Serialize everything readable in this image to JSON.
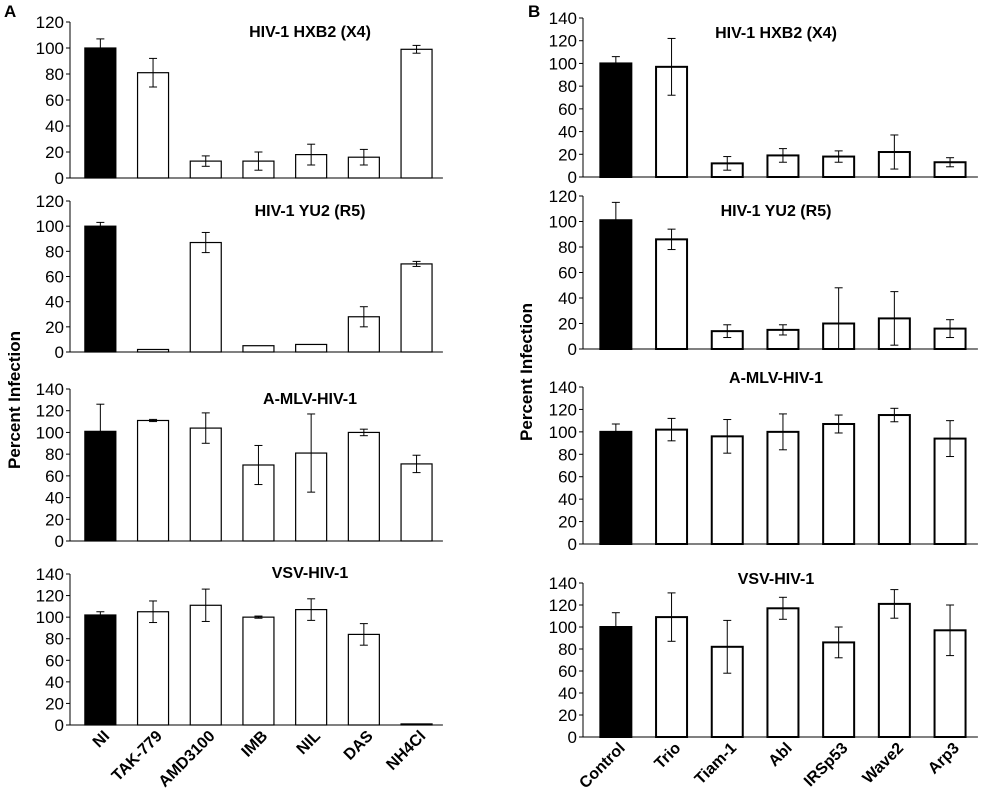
{
  "figure": {
    "panel_labels": [
      "A",
      "B"
    ],
    "ylabel": "Percent Infection"
  },
  "chart_data": [
    {
      "type": "bar",
      "panel": "A",
      "title": "HIV-1 HXB2 (X4)",
      "categories": [
        "NI",
        "TAK-779",
        "AMD3100",
        "IMB",
        "NIL",
        "DAS",
        "NH4Cl"
      ],
      "values": [
        100,
        81,
        13,
        13,
        18,
        16,
        99
      ],
      "errors": [
        7,
        11,
        4,
        7,
        8,
        6,
        3
      ],
      "bar_colors": [
        "#000000",
        "#ffffff",
        "#ffffff",
        "#ffffff",
        "#ffffff",
        "#ffffff",
        "#ffffff"
      ],
      "ylim": [
        0,
        120
      ],
      "yticks": [
        0,
        20,
        40,
        60,
        80,
        100,
        120
      ]
    },
    {
      "type": "bar",
      "panel": "A",
      "title": "HIV-1 YU2 (R5)",
      "categories": [
        "NI",
        "TAK-779",
        "AMD3100",
        "IMB",
        "NIL",
        "DAS",
        "NH4Cl"
      ],
      "values": [
        100,
        2,
        87,
        5,
        6,
        28,
        70
      ],
      "errors": [
        3,
        0,
        8,
        0,
        0,
        8,
        2
      ],
      "bar_colors": [
        "#000000",
        "#ffffff",
        "#ffffff",
        "#ffffff",
        "#ffffff",
        "#ffffff",
        "#ffffff"
      ],
      "ylim": [
        0,
        120
      ],
      "yticks": [
        0,
        20,
        40,
        60,
        80,
        100,
        120
      ]
    },
    {
      "type": "bar",
      "panel": "A",
      "title": "A-MLV-HIV-1",
      "categories": [
        "NI",
        "TAK-779",
        "AMD3100",
        "IMB",
        "NIL",
        "DAS",
        "NH4Cl"
      ],
      "values": [
        101,
        111,
        104,
        70,
        81,
        100,
        71
      ],
      "errors": [
        25,
        1,
        14,
        18,
        36,
        3,
        8
      ],
      "bar_colors": [
        "#000000",
        "#ffffff",
        "#ffffff",
        "#ffffff",
        "#ffffff",
        "#ffffff",
        "#ffffff"
      ],
      "ylim": [
        0,
        140
      ],
      "yticks": [
        0,
        20,
        40,
        60,
        80,
        100,
        120,
        140
      ]
    },
    {
      "type": "bar",
      "panel": "A",
      "title": "VSV-HIV-1",
      "categories": [
        "NI",
        "TAK-779",
        "AMD3100",
        "IMB",
        "NIL",
        "DAS",
        "NH4Cl"
      ],
      "values": [
        102,
        105,
        111,
        100,
        107,
        84,
        1
      ],
      "errors": [
        3,
        10,
        15,
        1,
        10,
        10,
        0
      ],
      "bar_colors": [
        "#000000",
        "#ffffff",
        "#ffffff",
        "#ffffff",
        "#ffffff",
        "#ffffff",
        "#ffffff"
      ],
      "ylim": [
        0,
        140
      ],
      "yticks": [
        0,
        20,
        40,
        60,
        80,
        100,
        120,
        140
      ]
    },
    {
      "type": "bar",
      "panel": "B",
      "title": "HIV-1 HXB2 (X4)",
      "categories": [
        "Control",
        "Trio",
        "Tiam-1",
        "Abl",
        "IRSp53",
        "Wave2",
        "Arp3"
      ],
      "values": [
        100,
        97,
        12,
        19,
        18,
        22,
        13
      ],
      "errors": [
        6,
        25,
        6,
        6,
        5,
        15,
        4
      ],
      "bar_colors": [
        "#000000",
        "#ffffff",
        "#ffffff",
        "#ffffff",
        "#ffffff",
        "#ffffff",
        "#ffffff"
      ],
      "ylim": [
        0,
        140
      ],
      "yticks": [
        0,
        20,
        40,
        60,
        80,
        100,
        120,
        140
      ]
    },
    {
      "type": "bar",
      "panel": "B",
      "title": "HIV-1 YU2 (R5)",
      "categories": [
        "Control",
        "Trio",
        "Tiam-1",
        "Abl",
        "IRSp53",
        "Wave2",
        "Arp3"
      ],
      "values": [
        101,
        86,
        14,
        15,
        20,
        24,
        16
      ],
      "errors": [
        14,
        8,
        5,
        4,
        28,
        21,
        7
      ],
      "bar_colors": [
        "#000000",
        "#ffffff",
        "#ffffff",
        "#ffffff",
        "#ffffff",
        "#ffffff",
        "#ffffff"
      ],
      "ylim": [
        0,
        120
      ],
      "yticks": [
        0,
        20,
        40,
        60,
        80,
        100,
        120
      ]
    },
    {
      "type": "bar",
      "panel": "B",
      "title": "A-MLV-HIV-1",
      "categories": [
        "Control",
        "Trio",
        "Tiam-1",
        "Abl",
        "IRSp53",
        "Wave2",
        "Arp3"
      ],
      "values": [
        100,
        102,
        96,
        100,
        107,
        115,
        94
      ],
      "errors": [
        7,
        10,
        15,
        16,
        8,
        6,
        16
      ],
      "bar_colors": [
        "#000000",
        "#ffffff",
        "#ffffff",
        "#ffffff",
        "#ffffff",
        "#ffffff",
        "#ffffff"
      ],
      "ylim": [
        0,
        140
      ],
      "yticks": [
        0,
        20,
        40,
        60,
        80,
        100,
        120,
        140
      ]
    },
    {
      "type": "bar",
      "panel": "B",
      "title": "VSV-HIV-1",
      "categories": [
        "Control",
        "Trio",
        "Tiam-1",
        "Abl",
        "IRSp53",
        "Wave2",
        "Arp3"
      ],
      "values": [
        100,
        109,
        82,
        117,
        86,
        121,
        97
      ],
      "errors": [
        13,
        22,
        24,
        10,
        14,
        13,
        23
      ],
      "bar_colors": [
        "#000000",
        "#ffffff",
        "#ffffff",
        "#ffffff",
        "#ffffff",
        "#ffffff",
        "#ffffff"
      ],
      "ylim": [
        0,
        140
      ],
      "yticks": [
        0,
        20,
        40,
        60,
        80,
        100,
        120,
        140
      ]
    }
  ]
}
